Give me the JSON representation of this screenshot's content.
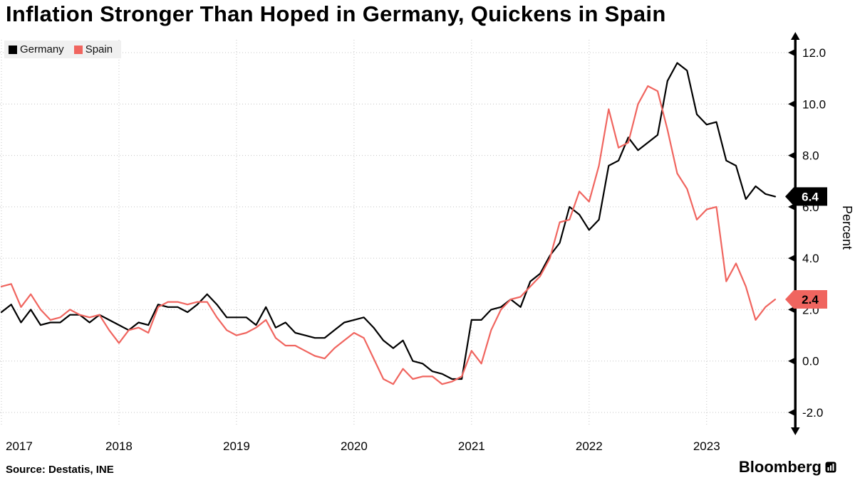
{
  "source": "Source: Destatis, INE",
  "branding": "Bloomberg",
  "chart_data": {
    "type": "line",
    "title": "Inflation Stronger Than Hoped in Germany, Quickens in Spain",
    "xlabel": "",
    "ylabel": "Percent",
    "ylim": [
      -2,
      12
    ],
    "yticks": [
      12,
      10,
      8,
      6,
      4,
      2,
      0,
      -2
    ],
    "ytick_labels": [
      "12.0",
      "10.0",
      "8.0",
      "6.0",
      "4.0",
      "2.0",
      "0.0",
      "-2.0"
    ],
    "xtick_labels": [
      "2017",
      "2018",
      "2019",
      "2020",
      "2021",
      "2022",
      "2023"
    ],
    "x_start": "2017-01",
    "x_end": "2023-08",
    "x_frequency": "monthly",
    "grid": "dotted",
    "legend_position": "top-left",
    "axis_side": "right",
    "series": [
      {
        "name": "Germany",
        "color": "#000000",
        "end_label": "6.4",
        "label_bg": "#000000",
        "label_fg": "#ffffff",
        "values": [
          1.9,
          2.2,
          1.5,
          2.0,
          1.4,
          1.5,
          1.5,
          1.8,
          1.8,
          1.5,
          1.8,
          1.6,
          1.4,
          1.2,
          1.5,
          1.4,
          2.2,
          2.1,
          2.1,
          1.9,
          2.2,
          2.6,
          2.2,
          1.7,
          1.7,
          1.7,
          1.4,
          2.1,
          1.3,
          1.5,
          1.1,
          1.0,
          0.9,
          0.9,
          1.2,
          1.5,
          1.6,
          1.7,
          1.3,
          0.8,
          0.5,
          0.8,
          0.0,
          -0.1,
          -0.4,
          -0.5,
          -0.7,
          -0.7,
          1.6,
          1.6,
          2.0,
          2.1,
          2.4,
          2.1,
          3.1,
          3.4,
          4.1,
          4.6,
          6.0,
          5.7,
          5.1,
          5.5,
          7.6,
          7.8,
          8.7,
          8.2,
          8.5,
          8.8,
          10.9,
          11.6,
          11.3,
          9.6,
          9.2,
          9.3,
          7.8,
          7.6,
          6.3,
          6.8,
          6.5,
          6.4
        ]
      },
      {
        "name": "Spain",
        "color": "#f0655f",
        "end_label": "2.4",
        "label_bg": "#f0655f",
        "label_fg": "#000000",
        "values": [
          2.9,
          3.0,
          2.1,
          2.6,
          2.0,
          1.6,
          1.7,
          2.0,
          1.8,
          1.7,
          1.8,
          1.2,
          0.7,
          1.2,
          1.3,
          1.1,
          2.1,
          2.3,
          2.3,
          2.2,
          2.3,
          2.3,
          1.7,
          1.2,
          1.0,
          1.1,
          1.3,
          1.6,
          0.9,
          0.6,
          0.6,
          0.4,
          0.2,
          0.1,
          0.5,
          0.8,
          1.1,
          0.9,
          0.1,
          -0.7,
          -0.9,
          -0.3,
          -0.7,
          -0.6,
          -0.6,
          -0.9,
          -0.8,
          -0.6,
          0.4,
          -0.1,
          1.2,
          2.0,
          2.4,
          2.5,
          2.9,
          3.3,
          4.0,
          5.4,
          5.5,
          6.6,
          6.2,
          7.6,
          9.8,
          8.3,
          8.5,
          10.0,
          10.7,
          10.5,
          9.0,
          7.3,
          6.7,
          5.5,
          5.9,
          6.0,
          3.1,
          3.8,
          2.9,
          1.6,
          2.1,
          2.4
        ]
      }
    ]
  }
}
